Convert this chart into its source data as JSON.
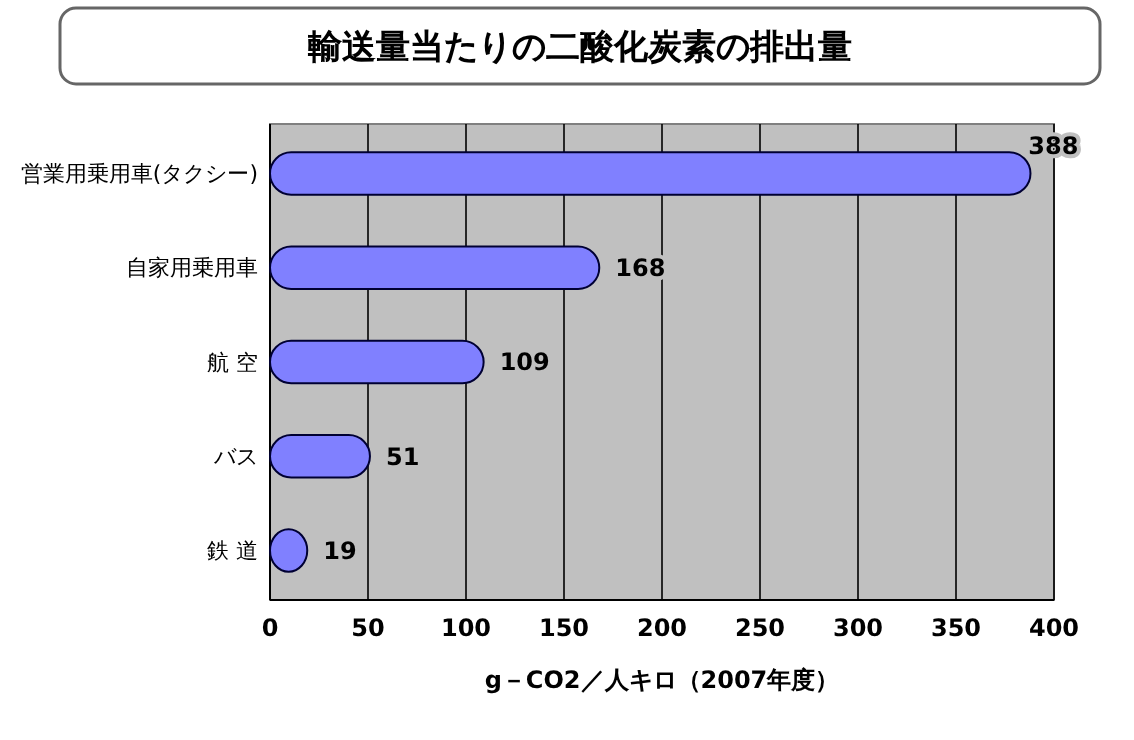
{
  "chart_data": {
    "type": "bar",
    "orientation": "horizontal",
    "title": "輸送量当たりの二酸化炭素の排出量",
    "xlabel": "g－CO2／人キロ（2007年度）",
    "categories": [
      "営業用乗用車(タクシー)",
      "自家用乗用車",
      "航 空",
      "バス",
      "鉄 道"
    ],
    "values": [
      388,
      168,
      109,
      51,
      19
    ],
    "color": "#8080ff",
    "xlim": [
      0,
      400
    ],
    "xticks": [
      0,
      50,
      100,
      150,
      200,
      250,
      300,
      350,
      400
    ],
    "grid": "x",
    "data_labels": true
  }
}
